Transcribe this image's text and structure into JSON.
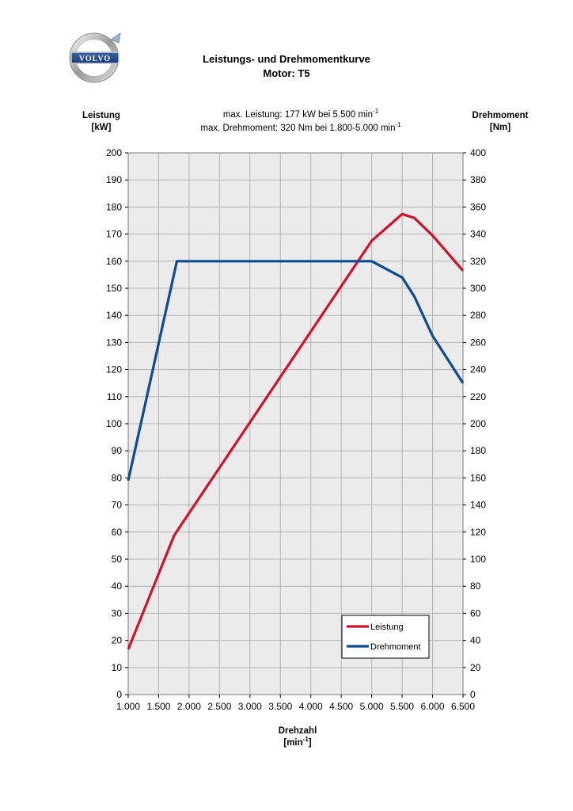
{
  "logo": {
    "brand_text": "VOLVO"
  },
  "header": {
    "title": "Leistungs- und Drehmomentkurve",
    "subtitle": "Motor: T5"
  },
  "max_info": {
    "power_prefix": "max. Leistung: 177 kW bei 5.500 min",
    "power_exp": "-1",
    "torque_prefix": "max. Drehmoment: 320 Nm bei 1.800-5.000 min",
    "torque_exp": "-1"
  },
  "colors": {
    "power": "#d0122a",
    "torque": "#0e4a92",
    "plot_bg": "#ebebeb",
    "grid": "#b4b4b4"
  },
  "chart_data": {
    "type": "line",
    "xlabel": "Drehzahl",
    "xlabel_unit_prefix": "[min",
    "xlabel_unit_exp": "-1",
    "xlabel_unit_suffix": "]",
    "ylabel_left": "Leistung",
    "ylabel_left_unit": "[kW]",
    "ylabel_right": "Drehmoment",
    "ylabel_right_unit": "[Nm]",
    "xlim": [
      1000,
      6500
    ],
    "ylim_left": [
      0,
      200
    ],
    "ylim_right": [
      0,
      400
    ],
    "grid": true,
    "legend_position": "bottom-right",
    "x_ticks": [
      1000,
      1500,
      2000,
      2500,
      3000,
      3500,
      4000,
      4500,
      5000,
      5500,
      6000,
      6500
    ],
    "x_tick_labels": [
      "1.000",
      "1.500",
      "2.000",
      "2.500",
      "3.000",
      "3.500",
      "4.000",
      "4.500",
      "5.000",
      "5.500",
      "6.000",
      "6.500"
    ],
    "y_left_ticks": [
      0,
      10,
      20,
      30,
      40,
      50,
      60,
      70,
      80,
      90,
      100,
      110,
      120,
      130,
      140,
      150,
      160,
      170,
      180,
      190,
      200
    ],
    "y_right_ticks": [
      0,
      20,
      40,
      60,
      80,
      100,
      120,
      140,
      160,
      180,
      200,
      220,
      240,
      260,
      280,
      300,
      320,
      340,
      360,
      380,
      400
    ],
    "series": [
      {
        "name": "Leistung",
        "axis": "left",
        "x": [
          1000,
          1750,
          1800,
          5000,
          5500,
          5700,
          6000,
          6500
        ],
        "y": [
          16.7,
          58.5,
          60.3,
          167.5,
          177.4,
          176.0,
          169.5,
          156.5
        ]
      },
      {
        "name": "Drehmoment",
        "axis": "right",
        "x": [
          1000,
          1800,
          5000,
          5500,
          5700,
          6000,
          6500
        ],
        "y": [
          158,
          320,
          320,
          308,
          294,
          265,
          230
        ]
      }
    ]
  }
}
